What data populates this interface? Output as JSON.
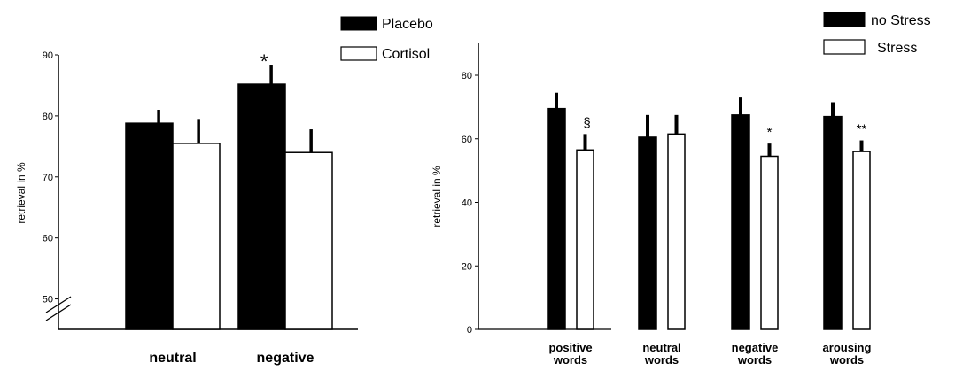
{
  "chart_data": [
    {
      "type": "bar",
      "ylabel": "retrieval in %",
      "ylim": [
        45,
        90
      ],
      "yticks": [
        50,
        60,
        70,
        80,
        90
      ],
      "axis_break": true,
      "categories": [
        "neutral",
        "negative"
      ],
      "legend": [
        "Placebo",
        "Cortisol"
      ],
      "legend_placement": "top-right",
      "series": [
        {
          "name": "Placebo",
          "color": "#000000",
          "values": [
            78.8,
            85.2
          ],
          "errors": [
            2.2,
            3.2
          ]
        },
        {
          "name": "Cortisol",
          "color": "#ffffff",
          "values": [
            75.5,
            74.0
          ],
          "errors": [
            4.0,
            3.8
          ]
        }
      ],
      "annotations": [
        {
          "category": 1,
          "series": 0,
          "text": "*"
        }
      ]
    },
    {
      "type": "bar",
      "ylabel": "retrieval in %",
      "ylim": [
        0,
        80
      ],
      "yticks": [
        0,
        20,
        40,
        60,
        80
      ],
      "categories": [
        {
          "line1": "positive",
          "line2": "words"
        },
        {
          "line1": "neutral",
          "line2": "words"
        },
        {
          "line1": "negative",
          "line2": "words"
        },
        {
          "line1": "arousing",
          "line2": "words"
        }
      ],
      "legend": [
        "no Stress",
        "Stress"
      ],
      "legend_placement": "top-right",
      "series": [
        {
          "name": "no Stress",
          "color": "#000000",
          "values": [
            69.5,
            60.5,
            67.5,
            67.0
          ],
          "errors": [
            5.0,
            7.0,
            5.5,
            4.5
          ]
        },
        {
          "name": "Stress",
          "color": "#ffffff",
          "values": [
            56.5,
            61.5,
            54.5,
            56.0
          ],
          "errors": [
            5.0,
            6.0,
            4.0,
            3.5
          ]
        }
      ],
      "annotations": [
        {
          "category": 0,
          "series": 1,
          "text": "§"
        },
        {
          "category": 2,
          "series": 1,
          "text": "*"
        },
        {
          "category": 3,
          "series": 1,
          "text": "**"
        }
      ]
    }
  ]
}
